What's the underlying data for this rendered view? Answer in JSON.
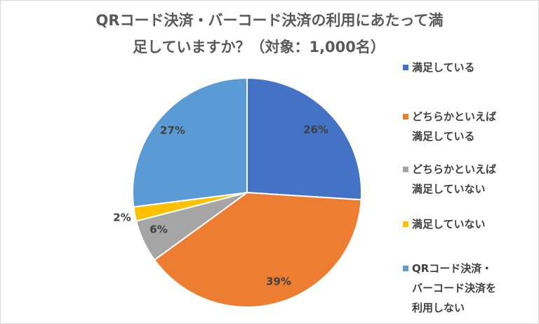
{
  "chart_data": {
    "type": "pie",
    "title_lines": [
      "QRコード決済・バーコード決済の利用にあたって満",
      "足していますか？（対象：1,000名）"
    ],
    "slices": [
      {
        "label": "満足している",
        "value": 26,
        "display": "26%",
        "color": "#4472c4"
      },
      {
        "label": "どちらかといえば\n満足している",
        "value": 39,
        "display": "39%",
        "color": "#ed7d31"
      },
      {
        "label": "どちらかといえば\n満足していない",
        "value": 6,
        "display": "6%",
        "color": "#a5a5a5"
      },
      {
        "label": "満足していない",
        "value": 2,
        "display": "2%",
        "color": "#ffc000"
      },
      {
        "label": "QRコード決済・\nバーコード決済を\n利用しない",
        "value": 27,
        "display": "27%",
        "color": "#5b9bd5"
      }
    ],
    "legend_position": "right"
  }
}
